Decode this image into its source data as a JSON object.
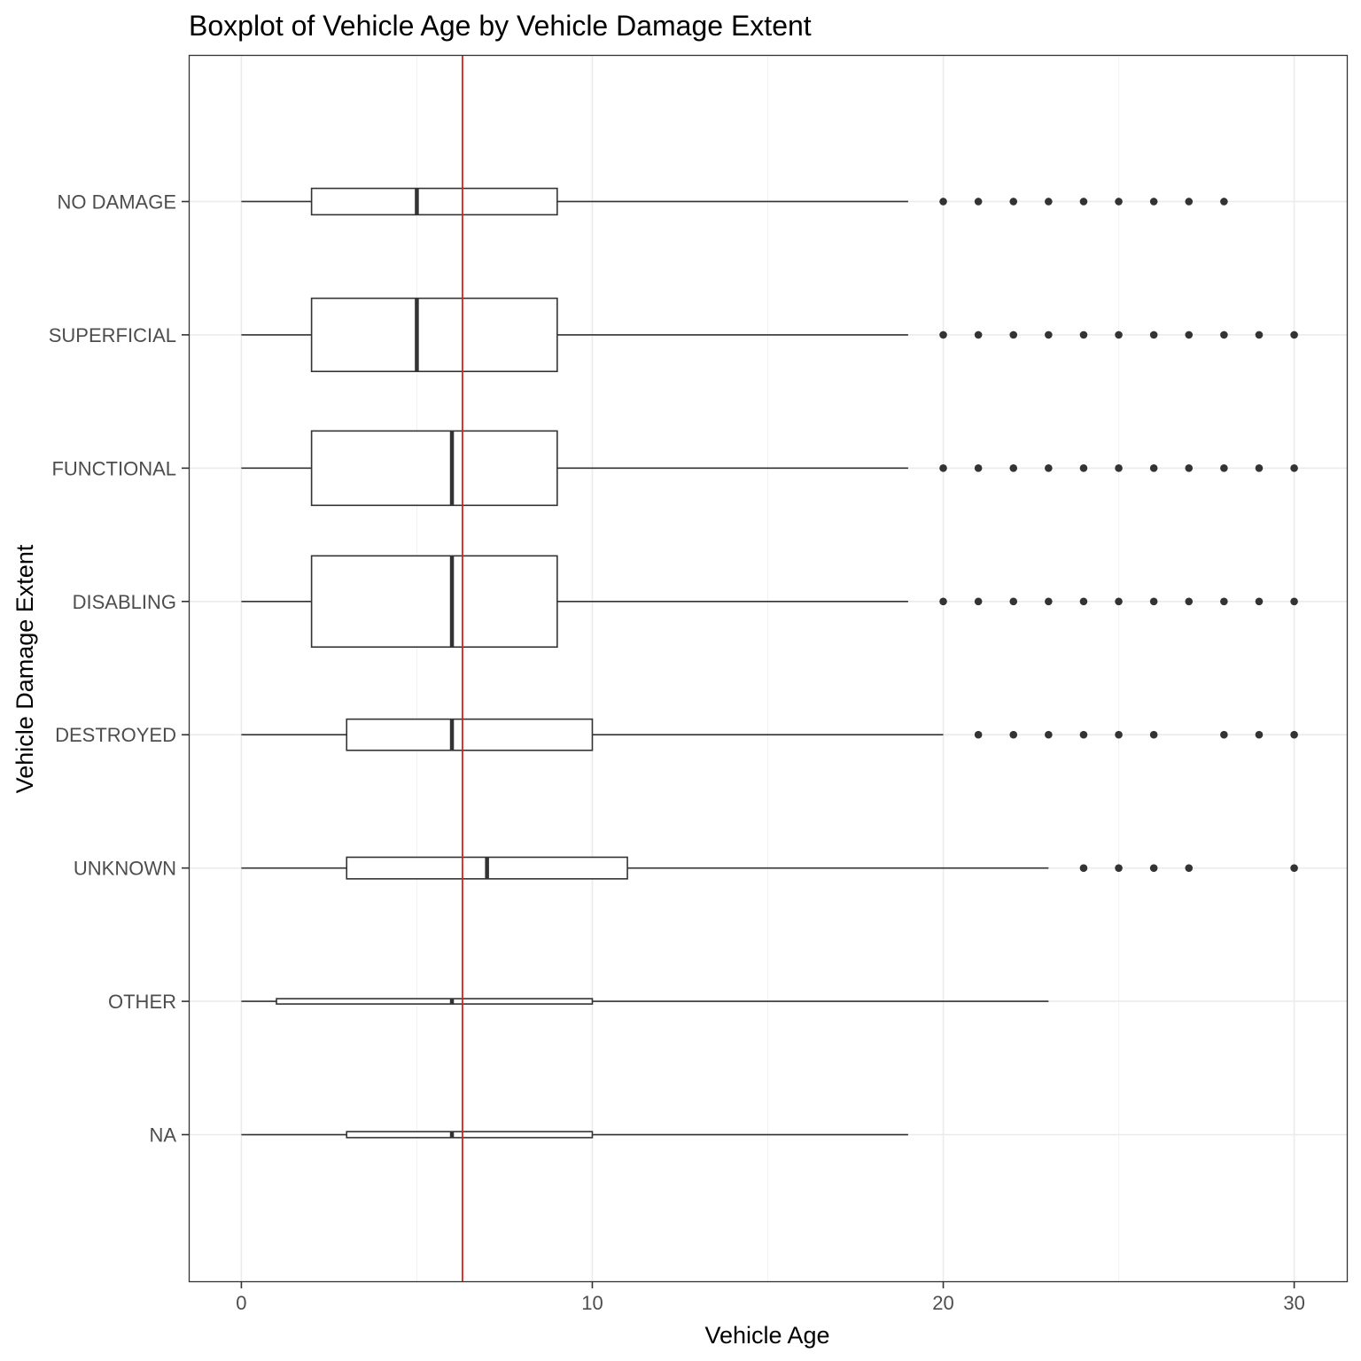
{
  "chart_data": {
    "type": "boxplot",
    "title": "Boxplot of Vehicle Age by Vehicle Damage Extent",
    "xlabel": "Vehicle Age",
    "ylabel": "Vehicle Damage Extent",
    "xlim": [
      -1.5,
      31.5
    ],
    "xticks": [
      0,
      10,
      20,
      30
    ],
    "grid": true,
    "reference_line": {
      "x": 6.3,
      "color": "#e41a1c"
    },
    "colors": {
      "box": "#333333",
      "grid": "#ebebeb",
      "panel_border": "#333333",
      "tick_label": "#4d4d4d"
    },
    "categories": [
      "NO DAMAGE",
      "SUPERFICIAL",
      "FUNCTIONAL",
      "DISABLING",
      "DESTROYED",
      "UNKNOWN",
      "OTHER",
      "NA"
    ],
    "boxes": [
      {
        "label": "NO DAMAGE",
        "min": 0,
        "q1": 2,
        "median": 5,
        "q3": 9,
        "max": 19,
        "relative_width": 0.22,
        "outliers": [
          20,
          21,
          22,
          23,
          24,
          25,
          26,
          27,
          28
        ]
      },
      {
        "label": "SUPERFICIAL",
        "min": 0,
        "q1": 2,
        "median": 5,
        "q3": 9,
        "max": 19,
        "relative_width": 0.61,
        "outliers": [
          20,
          21,
          22,
          23,
          24,
          25,
          26,
          27,
          28,
          29,
          30
        ]
      },
      {
        "label": "FUNCTIONAL",
        "min": 0,
        "q1": 2,
        "median": 6,
        "q3": 9,
        "max": 19,
        "relative_width": 0.62,
        "outliers": [
          20,
          21,
          22,
          23,
          24,
          25,
          26,
          27,
          28,
          29,
          30
        ]
      },
      {
        "label": "DISABLING",
        "min": 0,
        "q1": 2,
        "median": 6,
        "q3": 9,
        "max": 19,
        "relative_width": 0.76,
        "outliers": [
          20,
          21,
          22,
          23,
          24,
          25,
          26,
          27,
          28,
          29,
          30
        ]
      },
      {
        "label": "DESTROYED",
        "min": 0,
        "q1": 3,
        "median": 6,
        "q3": 10,
        "max": 20,
        "relative_width": 0.26,
        "outliers": [
          21,
          22,
          23,
          24,
          25,
          26,
          28,
          29,
          30
        ]
      },
      {
        "label": "UNKNOWN",
        "min": 0,
        "q1": 3,
        "median": 7,
        "q3": 11,
        "max": 23,
        "relative_width": 0.18,
        "outliers": [
          24,
          25,
          26,
          27,
          30
        ]
      },
      {
        "label": "OTHER",
        "min": 0,
        "q1": 1,
        "median": 6,
        "q3": 10,
        "max": 23,
        "relative_width": 0.04,
        "outliers": []
      },
      {
        "label": "NA",
        "min": 0,
        "q1": 3,
        "median": 6,
        "q3": 10,
        "max": 19,
        "relative_width": 0.05,
        "outliers": []
      }
    ]
  }
}
